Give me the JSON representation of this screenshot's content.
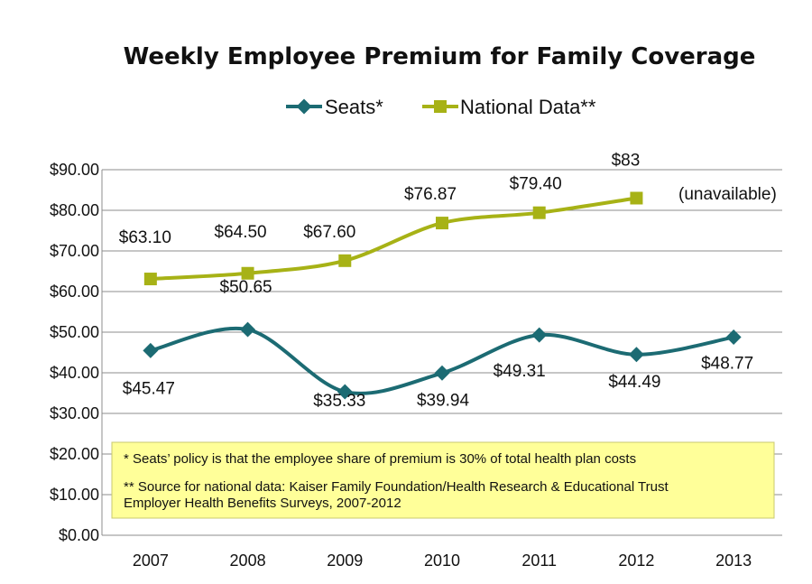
{
  "chart_data": {
    "type": "line",
    "title": "Weekly Employee Premium for Family Coverage",
    "categories": [
      "2007",
      "2008",
      "2009",
      "2010",
      "2011",
      "2012",
      "2013"
    ],
    "ylim": [
      0,
      90
    ],
    "y_ticks": [
      "$0.00",
      "$10.00",
      "$20.00",
      "$30.00",
      "$40.00",
      "$50.00",
      "$60.00",
      "$70.00",
      "$80.00",
      "$90.00"
    ],
    "grid": true,
    "legend_position": "top",
    "series": [
      {
        "name": "Seats*",
        "color": "#1c6b73",
        "marker": "diamond",
        "values": [
          45.47,
          50.65,
          35.33,
          39.94,
          49.31,
          44.49,
          48.77
        ],
        "labels": [
          "$45.47",
          "$50.65",
          "$35.33",
          "$39.94",
          "$49.31",
          "$44.49",
          "$48.77"
        ]
      },
      {
        "name": "National Data**",
        "color": "#a7b216",
        "marker": "square",
        "values": [
          63.1,
          64.5,
          67.6,
          76.87,
          79.4,
          83.0,
          null
        ],
        "labels": [
          "$63.10",
          "$64.50",
          "$67.60",
          "$76.87",
          "$79.40",
          "$83",
          null
        ]
      }
    ],
    "annotations": [
      "(unavailable)"
    ],
    "footnotes": [
      "* Seats’ policy is that the employee share of premium is 30% of total health plan costs",
      "** Source for national data:  Kaiser Family Foundation/Health Research & Educational Trust",
      "Employer Health Benefits Surveys, 2007-2012"
    ],
    "footnote_box_color": "#ffff99"
  }
}
